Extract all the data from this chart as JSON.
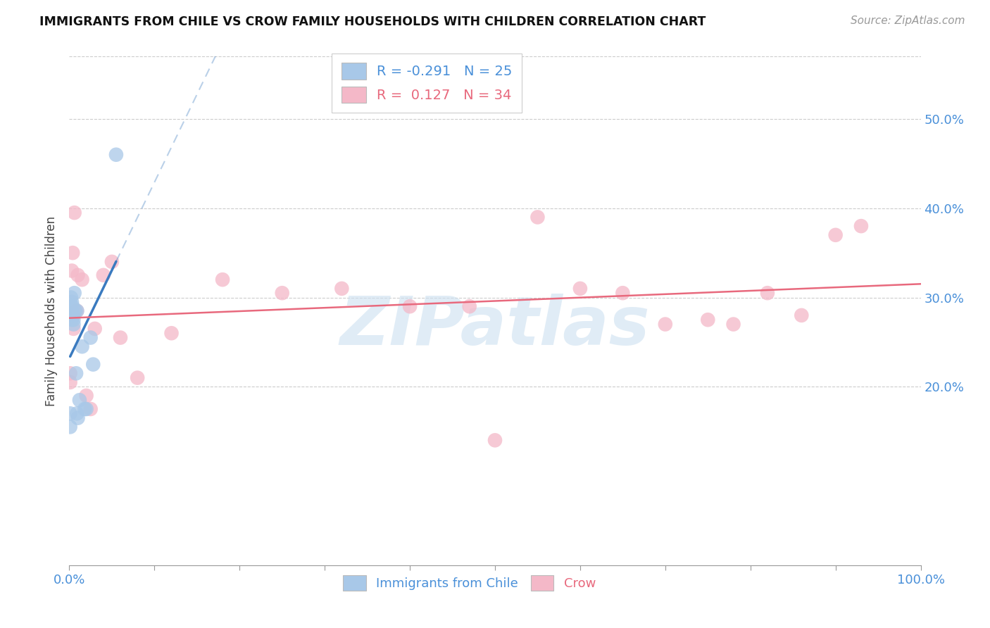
{
  "title": "IMMIGRANTS FROM CHILE VS CROW FAMILY HOUSEHOLDS WITH CHILDREN CORRELATION CHART",
  "source": "Source: ZipAtlas.com",
  "ylabel": "Family Households with Children",
  "legend_blue_label": "Immigrants from Chile",
  "legend_pink_label": "Crow",
  "R_blue": -0.291,
  "N_blue": 25,
  "R_pink": 0.127,
  "N_pink": 34,
  "blue_color": "#a8c8e8",
  "pink_color": "#f4b8c8",
  "trend_blue_color": "#3a7abf",
  "trend_pink_color": "#e8697d",
  "watermark": "ZIPatlas",
  "xlim": [
    0.0,
    1.0
  ],
  "ylim": [
    0.0,
    0.57
  ],
  "yticks": [
    0.2,
    0.3,
    0.4,
    0.5
  ],
  "ytick_labels": [
    "20.0%",
    "30.0%",
    "40.0%",
    "50.0%"
  ],
  "xticks": [
    0.0,
    0.1,
    0.2,
    0.3,
    0.4,
    0.5,
    0.6,
    0.7,
    0.8,
    0.9,
    1.0
  ],
  "blue_scatter_x": [
    0.001,
    0.001,
    0.002,
    0.002,
    0.003,
    0.003,
    0.003,
    0.004,
    0.004,
    0.005,
    0.005,
    0.005,
    0.006,
    0.007,
    0.008,
    0.009,
    0.009,
    0.01,
    0.012,
    0.015,
    0.018,
    0.02,
    0.025,
    0.028,
    0.055
  ],
  "blue_scatter_y": [
    0.17,
    0.155,
    0.29,
    0.3,
    0.295,
    0.285,
    0.275,
    0.29,
    0.28,
    0.28,
    0.275,
    0.27,
    0.305,
    0.285,
    0.215,
    0.285,
    0.17,
    0.165,
    0.185,
    0.245,
    0.175,
    0.175,
    0.255,
    0.225,
    0.46
  ],
  "pink_scatter_x": [
    0.001,
    0.001,
    0.003,
    0.004,
    0.005,
    0.006,
    0.007,
    0.009,
    0.01,
    0.015,
    0.02,
    0.025,
    0.03,
    0.04,
    0.05,
    0.06,
    0.08,
    0.12,
    0.18,
    0.25,
    0.32,
    0.4,
    0.47,
    0.5,
    0.55,
    0.6,
    0.65,
    0.7,
    0.75,
    0.78,
    0.82,
    0.86,
    0.9,
    0.93
  ],
  "pink_scatter_y": [
    0.215,
    0.205,
    0.33,
    0.35,
    0.265,
    0.395,
    0.285,
    0.285,
    0.325,
    0.32,
    0.19,
    0.175,
    0.265,
    0.325,
    0.34,
    0.255,
    0.21,
    0.26,
    0.32,
    0.305,
    0.31,
    0.29,
    0.29,
    0.14,
    0.39,
    0.31,
    0.305,
    0.27,
    0.275,
    0.27,
    0.305,
    0.28,
    0.37,
    0.38
  ],
  "blue_trend_x_start": 0.001,
  "blue_trend_x_solid_end": 0.055,
  "blue_trend_x_dash_end": 0.42,
  "pink_trend_x_start": 0.0,
  "pink_trend_x_end": 1.0
}
